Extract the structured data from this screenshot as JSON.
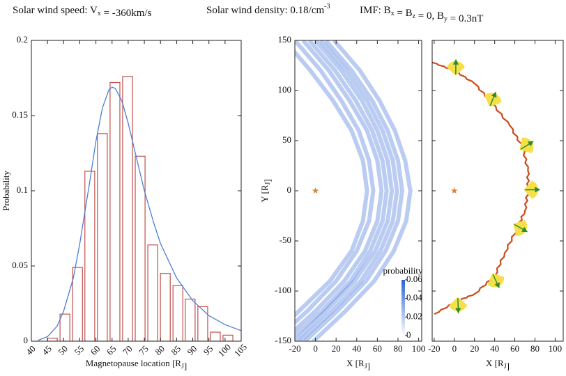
{
  "header": [
    [
      "Solar wind speed: V",
      {
        "sub": "x"
      },
      " = -360km/s"
    ],
    [
      "Solar wind density: 0.18/cm",
      {
        "sup": "-3"
      }
    ],
    [
      "IMF: B",
      {
        "sub": "x"
      },
      " = B",
      {
        "sub": "z"
      },
      " = 0,  B",
      {
        "sub": "y"
      },
      " = 0.3nT"
    ]
  ],
  "chart_data": [
    {
      "type": "histogram-fit",
      "xlabel": [
        "Magnetopause location  [R",
        {
          "sub": "J"
        },
        "]"
      ],
      "ylabel": "Probability",
      "xlim": [
        40,
        105
      ],
      "ylim": [
        0,
        0.2
      ],
      "xticks": [
        40,
        45,
        50,
        55,
        60,
        65,
        70,
        75,
        80,
        85,
        90,
        95,
        100,
        105
      ],
      "yticks": [
        0,
        0.05,
        0.1,
        0.15,
        0.2
      ],
      "series": [
        {
          "type": "bar",
          "color": "#c0504d",
          "x": [
            46.5,
            50.4,
            54.3,
            58.1,
            62.0,
            65.9,
            69.8,
            73.7,
            77.6,
            81.5,
            85.4,
            89.2,
            93.1,
            97.0,
            100.9
          ],
          "values": [
            0.002,
            0.018,
            0.049,
            0.113,
            0.138,
            0.172,
            0.176,
            0.123,
            0.064,
            0.045,
            0.037,
            0.028,
            0.023,
            0.006,
            0.004
          ]
        },
        {
          "type": "line",
          "color": "#4a7fd4",
          "x": [
            42,
            45,
            48,
            50,
            53,
            55,
            58,
            60,
            62,
            64,
            65,
            66,
            68,
            70,
            73,
            75,
            78,
            80,
            85,
            90,
            95,
            100,
            105
          ],
          "values": [
            0.0005,
            0.003,
            0.01,
            0.02,
            0.042,
            0.065,
            0.105,
            0.133,
            0.155,
            0.167,
            0.169,
            0.168,
            0.16,
            0.145,
            0.118,
            0.1,
            0.078,
            0.065,
            0.042,
            0.027,
            0.017,
            0.011,
            0.007
          ]
        }
      ]
    },
    {
      "type": "density-traces",
      "xlabel": [
        "X  [R",
        {
          "sub": "J"
        },
        "]"
      ],
      "ylabel": [
        "Y  [R",
        {
          "sub": "J"
        },
        "]"
      ],
      "xlim": [
        -20,
        103
      ],
      "ylim": [
        -150,
        150
      ],
      "xticks": [
        -20,
        0,
        20,
        40,
        60,
        80,
        100
      ],
      "yticks": [
        -150,
        -100,
        -50,
        0,
        50,
        100,
        150
      ],
      "planet": {
        "x": 0,
        "y": 0,
        "color": "#d9833a"
      },
      "y": [
        150,
        120,
        90,
        60,
        30,
        0,
        -30,
        -60,
        -90,
        -120,
        -150
      ],
      "series": [
        {
          "color": "#2a64d8",
          "x": [
            -20,
            5,
            25,
            42,
            52,
            56,
            52,
            40,
            20,
            -8,
            -40
          ]
        },
        {
          "color": "#2a64d8",
          "x": [
            -12,
            13,
            33,
            50,
            60,
            64,
            60,
            48,
            28,
            0,
            -32
          ]
        },
        {
          "color": "#2a64d8",
          "x": [
            -6,
            19,
            39,
            55,
            65,
            69,
            65,
            53,
            34,
            6,
            -26
          ]
        },
        {
          "color": "#2a64d8",
          "x": [
            0,
            25,
            45,
            60,
            70,
            74,
            70,
            58,
            38,
            10,
            -20
          ]
        },
        {
          "color": "#2a64d8",
          "x": [
            5,
            30,
            50,
            65,
            75,
            79,
            75,
            63,
            44,
            16,
            -15
          ]
        },
        {
          "color": "#2a64d8",
          "x": [
            10,
            35,
            55,
            70,
            80,
            84,
            80,
            68,
            49,
            21,
            -10
          ]
        },
        {
          "color": "#2a64d8",
          "x": [
            18,
            43,
            62,
            77,
            87,
            92,
            88,
            76,
            57,
            29,
            -2
          ]
        },
        {
          "color": "#2a64d8",
          "x": [
            -30,
            -5,
            17,
            35,
            46,
            50,
            46,
            35,
            14,
            -16,
            -48
          ]
        }
      ],
      "colorbar": {
        "title": "probability",
        "lim": [
          0,
          0.06
        ],
        "ticks": [
          0,
          0.02,
          0.04,
          0.06
        ],
        "color": "#2a64d8"
      }
    },
    {
      "type": "boundary",
      "xlabel": [
        "X  [R",
        {
          "sub": "J"
        },
        "]"
      ],
      "xlim": [
        -22,
        108
      ],
      "ylim": [
        -150,
        150
      ],
      "xticks": [
        -20,
        0,
        20,
        40,
        60,
        80,
        100
      ],
      "yticks": [
        -150,
        -100,
        -50,
        0,
        50,
        100,
        150
      ],
      "planet": {
        "x": 0,
        "y": 0,
        "color": "#d9833a"
      },
      "line": {
        "color": "#cc4a1c",
        "x": [
          -22,
          0,
          20,
          37,
          55,
          68,
          73,
          73,
          70,
          62,
          50,
          40,
          20,
          3,
          -20
        ],
        "y": [
          128,
          120,
          107,
          88,
          65,
          43,
          20,
          0,
          -20,
          -38,
          -62,
          -85,
          -103,
          -110,
          -123
        ]
      },
      "markers": {
        "color": "#f5e04a",
        "arrow_color": "#2e8b2e",
        "x": [
          1.4,
          36.6,
          68.3,
          73,
          62,
          39.5,
          3.6
        ],
        "y": [
          119,
          87.5,
          43,
          1,
          -35,
          -86,
          -110
        ]
      }
    }
  ]
}
